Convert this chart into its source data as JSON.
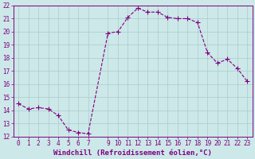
{
  "x": [
    0,
    1,
    2,
    3,
    4,
    5,
    6,
    7,
    9,
    10,
    11,
    12,
    13,
    14,
    15,
    16,
    17,
    18,
    19,
    20,
    21,
    22,
    23
  ],
  "y": [
    14.5,
    14.1,
    14.2,
    14.1,
    13.6,
    12.5,
    12.3,
    12.2,
    19.9,
    20.0,
    21.1,
    21.8,
    21.5,
    21.5,
    21.1,
    21.0,
    21.0,
    20.7,
    18.4,
    17.6,
    17.9,
    17.2,
    16.2
  ],
  "line_color": "#800080",
  "marker": "+",
  "marker_size": 4,
  "bg_color": "#cce8e8",
  "grid_color": "#aacccc",
  "tick_color": "#800080",
  "label_color": "#800080",
  "xlabel": "Windchill (Refroidissement éolien,°C)",
  "xlim": [
    -0.5,
    23.5
  ],
  "ylim": [
    12,
    22
  ],
  "yticks": [
    12,
    13,
    14,
    15,
    16,
    17,
    18,
    19,
    20,
    21,
    22
  ],
  "xticks": [
    0,
    1,
    2,
    3,
    4,
    5,
    6,
    7,
    9,
    10,
    11,
    12,
    13,
    14,
    15,
    16,
    17,
    18,
    19,
    20,
    21,
    22,
    23
  ],
  "font_size": 5.5,
  "xlabel_fontsize": 6.5,
  "linewidth": 0.8,
  "marker_linewidth": 0.8
}
